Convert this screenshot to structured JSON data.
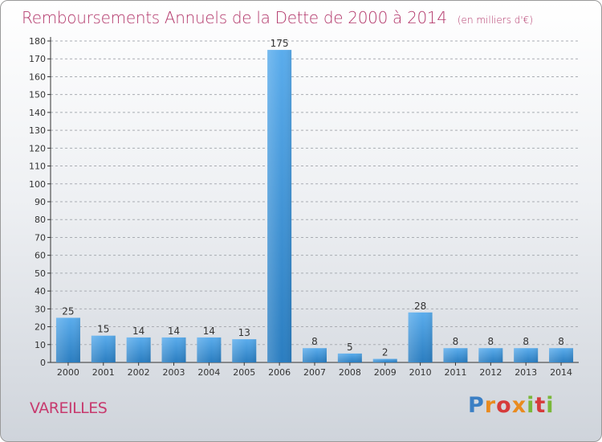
{
  "header": {
    "title": "Remboursements Annuels de la Dette de 2000 à 2014",
    "unit": "(en milliers d'€)"
  },
  "footer": {
    "town": "VAREILLES",
    "logo": "Proxiti"
  },
  "colors": {
    "title": "#b3386b",
    "bar_top": "#5aacec",
    "bar_bottom": "#2a7dc0",
    "grid": "#a9adb3",
    "town": "#c73a6e"
  },
  "chart_data": {
    "type": "bar",
    "title": "Remboursements Annuels de la Dette de 2000 à 2014",
    "unit": "(en milliers d'€)",
    "xlabel": "",
    "ylabel": "",
    "categories": [
      "2000",
      "2001",
      "2002",
      "2003",
      "2004",
      "2005",
      "2006",
      "2007",
      "2008",
      "2009",
      "2010",
      "2011",
      "2012",
      "2013",
      "2014"
    ],
    "values": [
      25,
      15,
      14,
      14,
      14,
      13,
      175,
      8,
      5,
      2,
      28,
      8,
      8,
      8,
      8
    ],
    "ylim": [
      0,
      180
    ],
    "ytick_step": 10,
    "grid": true,
    "grid_style": "dashed horizontal",
    "data_labels": true
  }
}
